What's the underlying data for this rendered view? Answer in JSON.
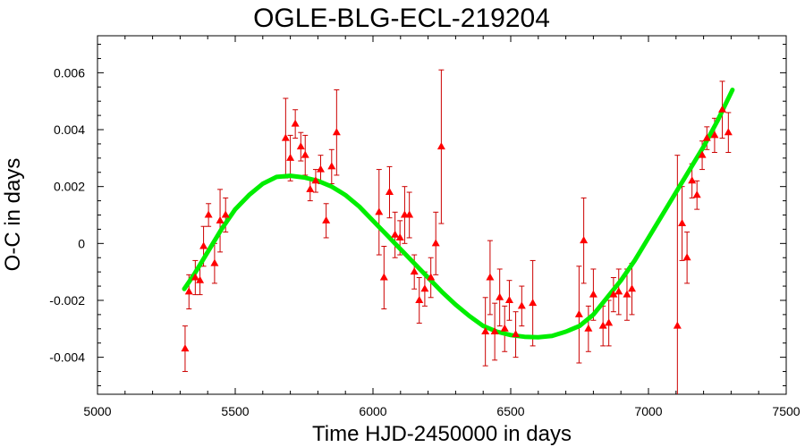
{
  "chart_data": {
    "type": "scatter",
    "title": "OGLE-BLG-ECL-219204",
    "xlabel": "Time HJD-2450000 in days",
    "ylabel": "O-C in days",
    "xlim": [
      5000,
      7500
    ],
    "ylim": [
      -0.0053,
      0.0073
    ],
    "xticks": [
      5000,
      5500,
      6000,
      6500,
      7000,
      7500
    ],
    "yticks": [
      -0.004,
      -0.002,
      0,
      0.002,
      0.004,
      0.006
    ],
    "xtick_labels": [
      "5000",
      "5500",
      "6000",
      "6500",
      "7000",
      "7500"
    ],
    "ytick_labels": [
      "-0.004",
      "-0.002",
      "0",
      "0.002",
      "0.004",
      "0.006"
    ],
    "grid": false,
    "colors": {
      "points": "#ff0000",
      "errorbars": "#cc0000",
      "fit": "#00ee00",
      "axes": "#000000"
    },
    "series": [
      {
        "kind": "points_with_errorbars",
        "points": [
          {
            "x": 5318,
            "y": -0.0037,
            "err": 0.0008
          },
          {
            "x": 5332,
            "y": -0.0017,
            "err": 0.0006
          },
          {
            "x": 5355,
            "y": -0.0012,
            "err": 0.0006
          },
          {
            "x": 5372,
            "y": -0.0013,
            "err": 0.0005
          },
          {
            "x": 5385,
            "y": -0.0001,
            "err": 0.0007
          },
          {
            "x": 5403,
            "y": 0.001,
            "err": 0.0004
          },
          {
            "x": 5425,
            "y": -0.0007,
            "err": 0.0007
          },
          {
            "x": 5445,
            "y": 0.0008,
            "err": 0.0011
          },
          {
            "x": 5465,
            "y": 0.001,
            "err": 0.0006
          },
          {
            "x": 5683,
            "y": 0.0037,
            "err": 0.0014
          },
          {
            "x": 5700,
            "y": 0.003,
            "err": 0.0008
          },
          {
            "x": 5718,
            "y": 0.0042,
            "err": 0.0005
          },
          {
            "x": 5738,
            "y": 0.0034,
            "err": 0.0005
          },
          {
            "x": 5754,
            "y": 0.0031,
            "err": 0.0007
          },
          {
            "x": 5772,
            "y": 0.0019,
            "err": 0.0004
          },
          {
            "x": 5792,
            "y": 0.0022,
            "err": 0.0004
          },
          {
            "x": 5810,
            "y": 0.0026,
            "err": 0.0005
          },
          {
            "x": 5830,
            "y": 0.0008,
            "err": 0.0006
          },
          {
            "x": 5850,
            "y": 0.0027,
            "err": 0.0006
          },
          {
            "x": 5868,
            "y": 0.0039,
            "err": 0.0015
          },
          {
            "x": 6022,
            "y": 0.0011,
            "err": 0.0015
          },
          {
            "x": 6040,
            "y": -0.0012,
            "err": 0.0011
          },
          {
            "x": 6060,
            "y": 0.0018,
            "err": 0.0009
          },
          {
            "x": 6080,
            "y": 0.0003,
            "err": 0.0008
          },
          {
            "x": 6098,
            "y": 0.0002,
            "err": 0.0006
          },
          {
            "x": 6115,
            "y": 0.001,
            "err": 0.001
          },
          {
            "x": 6132,
            "y": 0.001,
            "err": 0.0008
          },
          {
            "x": 6150,
            "y": -0.001,
            "err": 0.0006
          },
          {
            "x": 6168,
            "y": -0.002,
            "err": 0.0008
          },
          {
            "x": 6188,
            "y": -0.0016,
            "err": 0.0006
          },
          {
            "x": 6210,
            "y": -0.0012,
            "err": 0.0007
          },
          {
            "x": 6228,
            "y": 0.0,
            "err": 0.0011
          },
          {
            "x": 6248,
            "y": 0.0034,
            "err": 0.0027
          },
          {
            "x": 6408,
            "y": -0.0031,
            "err": 0.0012
          },
          {
            "x": 6425,
            "y": -0.0012,
            "err": 0.0013
          },
          {
            "x": 6442,
            "y": -0.0031,
            "err": 0.001
          },
          {
            "x": 6460,
            "y": -0.0019,
            "err": 0.001
          },
          {
            "x": 6478,
            "y": -0.003,
            "err": 0.0008
          },
          {
            "x": 6495,
            "y": -0.002,
            "err": 0.0007
          },
          {
            "x": 6518,
            "y": -0.0032,
            "err": 0.0008
          },
          {
            "x": 6540,
            "y": -0.0022,
            "err": 0.0007
          },
          {
            "x": 6580,
            "y": -0.0021,
            "err": 0.0015
          },
          {
            "x": 6748,
            "y": -0.0025,
            "err": 0.0017
          },
          {
            "x": 6765,
            "y": 0.0001,
            "err": 0.0015
          },
          {
            "x": 6782,
            "y": -0.003,
            "err": 0.0008
          },
          {
            "x": 6800,
            "y": -0.0018,
            "err": 0.0009
          },
          {
            "x": 6835,
            "y": -0.0029,
            "err": 0.0007
          },
          {
            "x": 6856,
            "y": -0.0028,
            "err": 0.0008
          },
          {
            "x": 6873,
            "y": -0.0018,
            "err": 0.0006
          },
          {
            "x": 6892,
            "y": -0.0017,
            "err": 0.0008
          },
          {
            "x": 6922,
            "y": -0.0018,
            "err": 0.0009
          },
          {
            "x": 6940,
            "y": -0.0016,
            "err": 0.0009
          },
          {
            "x": 7105,
            "y": -0.0029,
            "err": 0.006
          },
          {
            "x": 7122,
            "y": 0.0007,
            "err": 0.0013
          },
          {
            "x": 7140,
            "y": -0.0005,
            "err": 0.0009
          },
          {
            "x": 7158,
            "y": 0.0022,
            "err": 0.0006
          },
          {
            "x": 7176,
            "y": 0.0017,
            "err": 0.0005
          },
          {
            "x": 7195,
            "y": 0.0031,
            "err": 0.0005
          },
          {
            "x": 7212,
            "y": 0.0037,
            "err": 0.0004
          },
          {
            "x": 7240,
            "y": 0.0038,
            "err": 0.0006
          },
          {
            "x": 7268,
            "y": 0.0047,
            "err": 0.001
          },
          {
            "x": 7290,
            "y": 0.0039,
            "err": 0.0007
          }
        ]
      },
      {
        "kind": "fit_curve",
        "x": [
          5315,
          5350,
          5400,
          5450,
          5500,
          5550,
          5600,
          5650,
          5700,
          5750,
          5800,
          5850,
          5900,
          5950,
          6000,
          6050,
          6100,
          6150,
          6200,
          6250,
          6300,
          6350,
          6400,
          6450,
          6500,
          6550,
          6600,
          6650,
          6700,
          6750,
          6800,
          6850,
          6900,
          6950,
          7000,
          7050,
          7100,
          7150,
          7200,
          7250,
          7305
        ],
        "y": [
          -0.0016,
          -0.0011,
          -0.0003,
          0.0005,
          0.0012,
          0.0017,
          0.0021,
          0.00234,
          0.00238,
          0.00232,
          0.0022,
          0.002,
          0.0017,
          0.0013,
          0.0008,
          0.0003,
          -0.0002,
          -0.0007,
          -0.0012,
          -0.0017,
          -0.00215,
          -0.00255,
          -0.0029,
          -0.0031,
          -0.00322,
          -0.00328,
          -0.0033,
          -0.00325,
          -0.0031,
          -0.0029,
          -0.0025,
          -0.0019,
          -0.0013,
          -0.0006,
          0.0002,
          0.001,
          0.0018,
          0.0026,
          0.0034,
          0.0043,
          0.0054
        ]
      }
    ]
  }
}
